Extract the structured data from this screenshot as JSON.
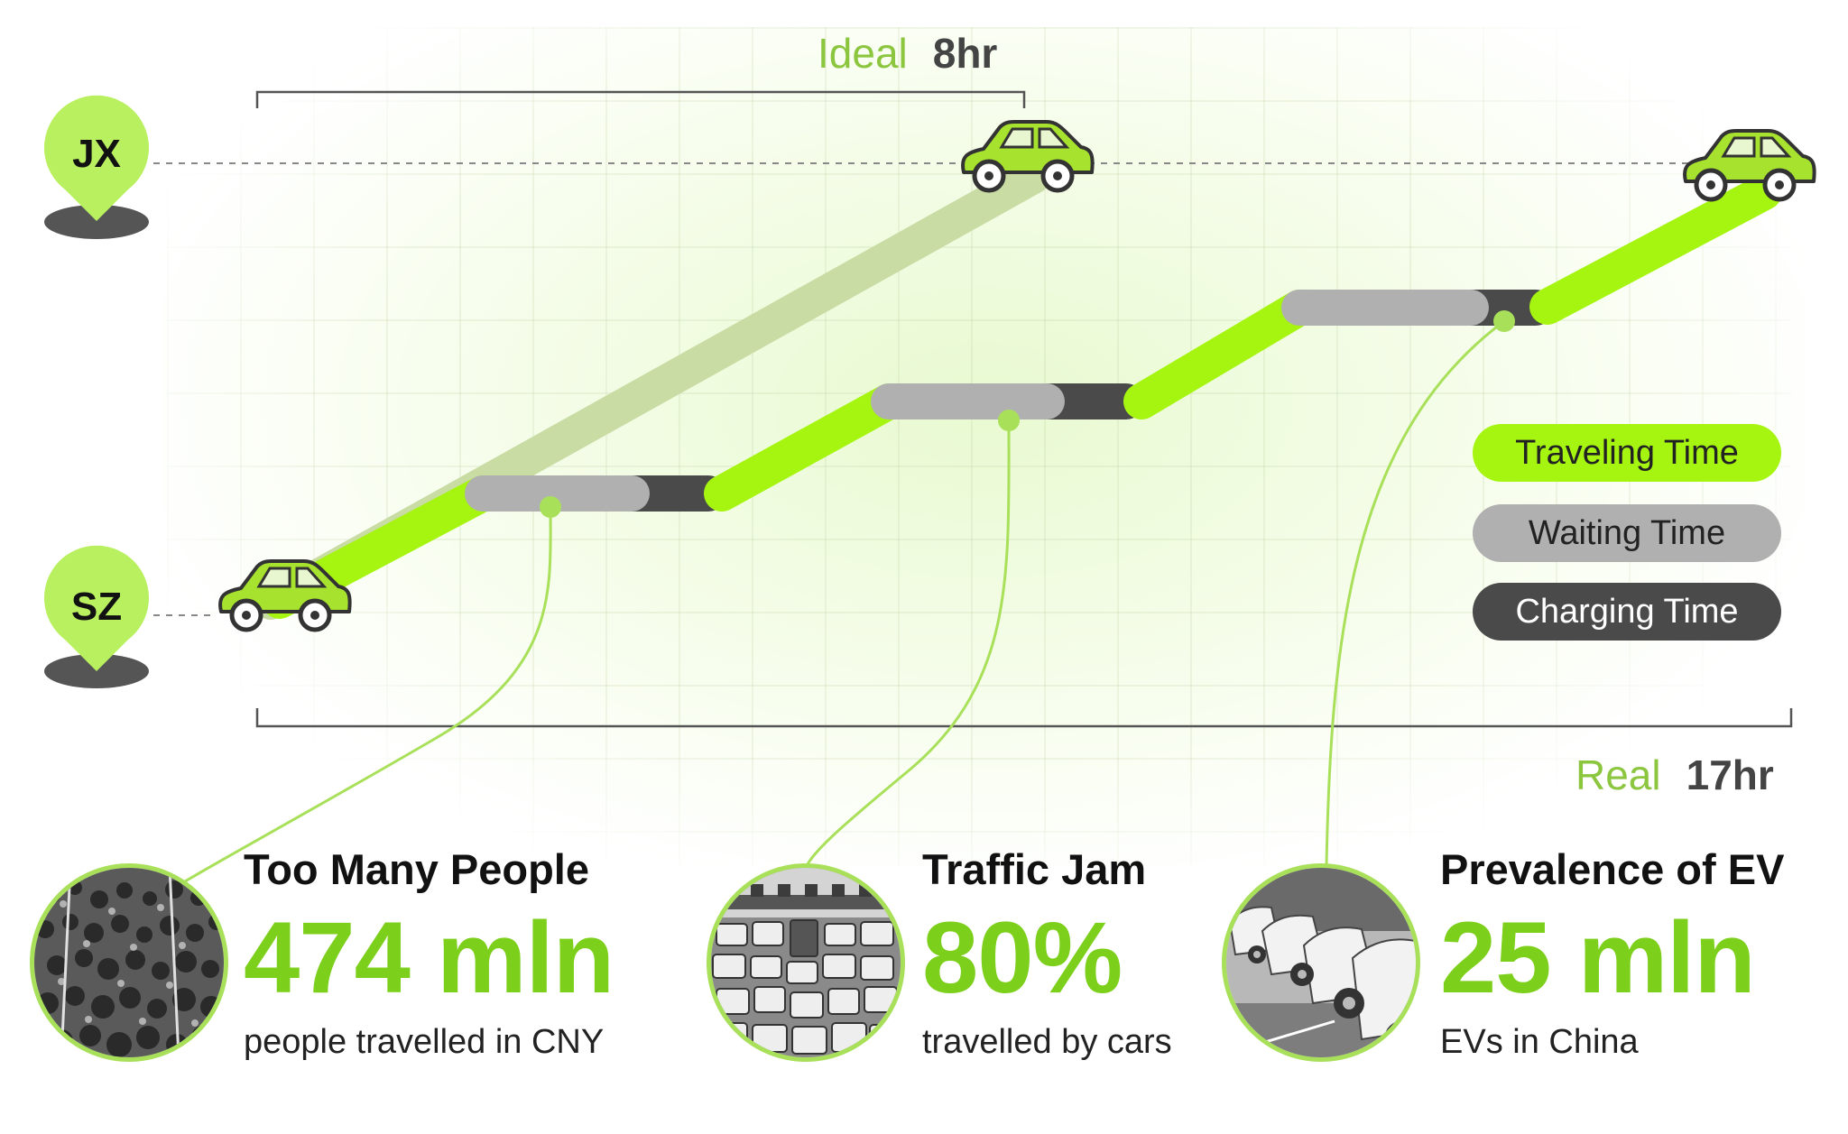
{
  "ideal": {
    "label": "Ideal",
    "value": "8hr"
  },
  "real": {
    "label": "Real",
    "value": "17hr"
  },
  "cities": {
    "start": "SZ",
    "end": "JX"
  },
  "legend": [
    {
      "label": "Traveling Time",
      "color": "#a6f511",
      "text_color": "#222222"
    },
    {
      "label": "Waiting Time",
      "color": "#b0b0b0",
      "text_color": "#222222"
    },
    {
      "label": "Charging Time",
      "color": "#4a4a4a",
      "text_color": "#ffffff"
    }
  ],
  "stats": [
    {
      "title": "Too Many People",
      "value": "474 mln",
      "desc": "people travelled in CNY",
      "photo_icon": "crowd-photo"
    },
    {
      "title": "Traffic Jam",
      "value": "80%",
      "desc": "travelled by cars",
      "photo_icon": "traffic-jam-photo"
    },
    {
      "title": "Prevalence of EV",
      "value": "25 mln",
      "desc": "EVs in China",
      "photo_icon": "ev-charging-photo"
    }
  ],
  "colors": {
    "accent": "#a6f511",
    "accent_dark": "#7ccf1a",
    "ideal_line": "#c8dca4",
    "connector": "#a9e05a"
  }
}
